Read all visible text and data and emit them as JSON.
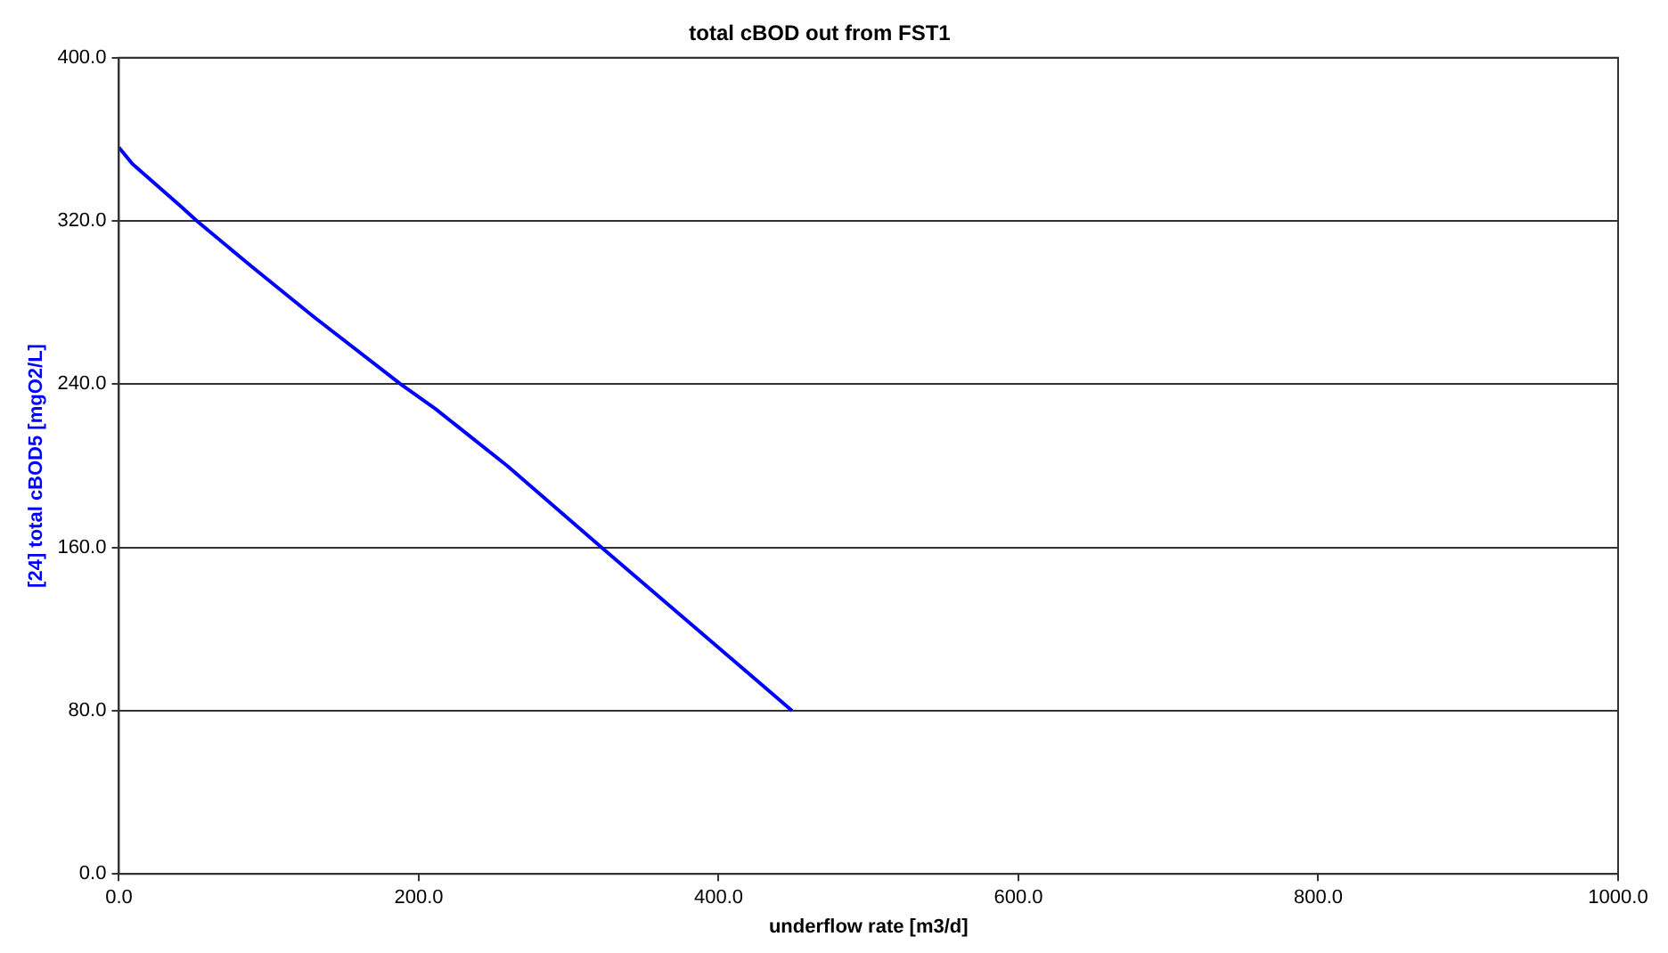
{
  "chart_data": {
    "type": "line",
    "title": "total cBOD out from FST1",
    "xlabel": "underflow rate [m3/d]",
    "ylabel": "[24] total cBOD5 [mgO2/L]",
    "series": [
      {
        "color": "#0000ff",
        "x": [
          0,
          9,
          40,
          52,
          88,
          130,
          188,
          211,
          259,
          322,
          449
        ],
        "values": [
          356,
          348,
          328,
          320,
          298,
          273,
          240,
          228,
          200,
          160,
          80
        ]
      }
    ],
    "xlim": [
      0,
      1000
    ],
    "xticks": [
      {
        "value": 0,
        "label": "0.0"
      },
      {
        "value": 200,
        "label": "200.0"
      },
      {
        "value": 400,
        "label": "400.0"
      },
      {
        "value": 600,
        "label": "600.0"
      },
      {
        "value": 800,
        "label": "800.0"
      },
      {
        "value": 1000,
        "label": "1000.0"
      }
    ],
    "ylim": [
      0,
      400
    ],
    "yticks": [
      {
        "value": 0,
        "label": "0.0"
      },
      {
        "value": 80,
        "label": "80.0"
      },
      {
        "value": 160,
        "label": "160.0"
      },
      {
        "value": 240,
        "label": "240.0"
      },
      {
        "value": 320,
        "label": "320.0"
      },
      {
        "value": 400,
        "label": "400.0"
      }
    ],
    "grid": "y",
    "legend": false,
    "marker": "none",
    "line_style": "solid"
  }
}
